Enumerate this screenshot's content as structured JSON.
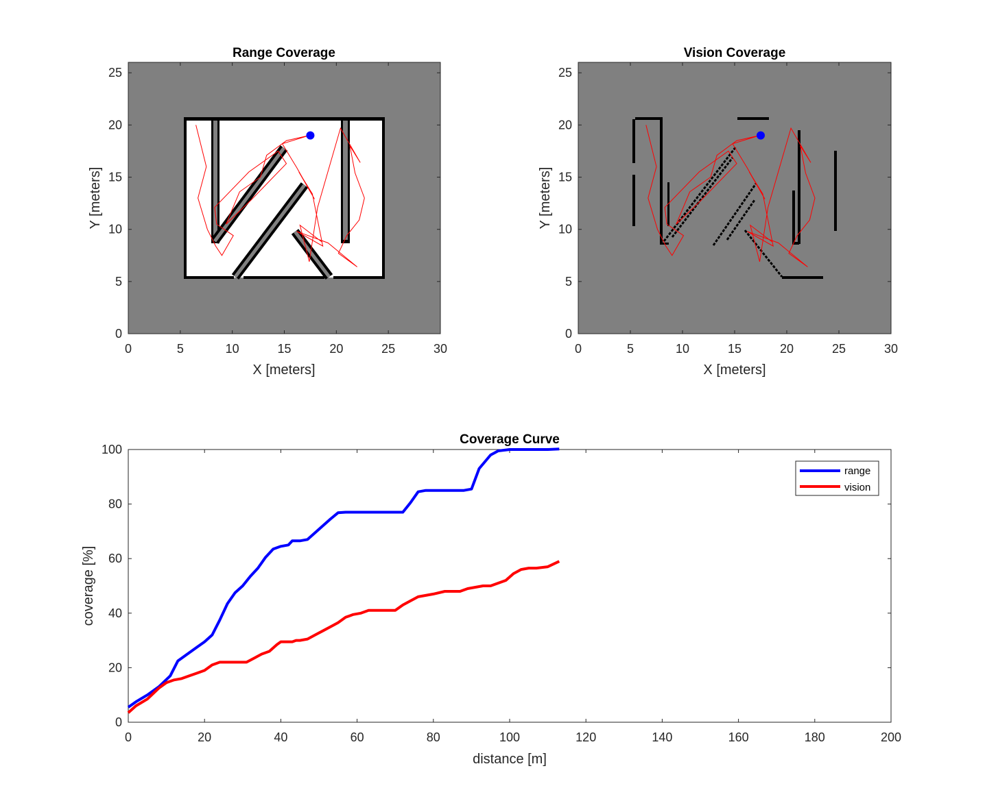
{
  "chart_data": [
    {
      "type": "occupancy-map",
      "title": "Range Coverage",
      "xlabel": "X [meters]",
      "ylabel": "Y [meters]",
      "xlim": [
        0,
        30
      ],
      "ylim": [
        0,
        26
      ],
      "xticks": [
        "0",
        "5",
        "10",
        "15",
        "20",
        "25",
        "30"
      ],
      "yticks": [
        "0",
        "5",
        "10",
        "15",
        "20",
        "25"
      ],
      "colors": {
        "unknown": "#808080",
        "free": "#ffffff",
        "occupied": "#000000",
        "path": "#ff0000",
        "robot": "#0000ff"
      },
      "robot_position": [
        17.5,
        19
      ],
      "path": [
        [
          6.5,
          20
        ],
        [
          7.5,
          16
        ],
        [
          6.7,
          13
        ],
        [
          7.6,
          10
        ],
        [
          8.4,
          8.4
        ],
        [
          9,
          7.5
        ],
        [
          10.1,
          9.4
        ],
        [
          8.5,
          10.5
        ],
        [
          8.3,
          12.1
        ],
        [
          11.6,
          15.5
        ],
        [
          14.4,
          17.5
        ],
        [
          15.2,
          16.3
        ],
        [
          11.8,
          12.8
        ],
        [
          9.4,
          10.5
        ],
        [
          10.7,
          13.6
        ],
        [
          12.7,
          15
        ],
        [
          13.3,
          17.1
        ],
        [
          15.2,
          18.5
        ],
        [
          17.4,
          19
        ],
        [
          14.8,
          18.2
        ],
        [
          16.2,
          15.9
        ],
        [
          17.9,
          12.9
        ],
        [
          16.4,
          15.5
        ],
        [
          17.7,
          13.4
        ],
        [
          18.7,
          8.4
        ],
        [
          16.2,
          9.8
        ],
        [
          19.2,
          8.7
        ],
        [
          22,
          6.4
        ],
        [
          20.2,
          7.7
        ],
        [
          21,
          9.4
        ],
        [
          22.2,
          10.9
        ],
        [
          22.7,
          13
        ],
        [
          21.8,
          15.4
        ],
        [
          21.3,
          18
        ],
        [
          22.3,
          16.4
        ],
        [
          20.4,
          19.7
        ],
        [
          18.2,
          12.1
        ],
        [
          17.4,
          6.9
        ],
        [
          16.5,
          10.4
        ],
        [
          18.6,
          8.8
        ]
      ]
    },
    {
      "type": "occupancy-map",
      "title": "Vision Coverage",
      "xlabel": "X [meters]",
      "ylabel": "Y [meters]",
      "xlim": [
        0,
        30
      ],
      "ylim": [
        0,
        26
      ],
      "xticks": [
        "0",
        "5",
        "10",
        "15",
        "20",
        "25",
        "30"
      ],
      "yticks": [
        "0",
        "5",
        "10",
        "15",
        "20",
        "25"
      ],
      "robot_position": [
        17.5,
        19
      ],
      "path": [
        [
          6.5,
          20
        ],
        [
          7.5,
          16
        ],
        [
          6.7,
          13
        ],
        [
          7.6,
          10
        ],
        [
          8.4,
          8.4
        ],
        [
          9,
          7.5
        ],
        [
          10.1,
          9.4
        ],
        [
          8.5,
          10.5
        ],
        [
          8.3,
          12.1
        ],
        [
          11.6,
          15.5
        ],
        [
          14.4,
          17.5
        ],
        [
          15.2,
          16.3
        ],
        [
          11.8,
          12.8
        ],
        [
          9.4,
          10.5
        ],
        [
          10.7,
          13.6
        ],
        [
          12.7,
          15
        ],
        [
          13.3,
          17.1
        ],
        [
          15.2,
          18.5
        ],
        [
          17.4,
          19
        ],
        [
          14.8,
          18.2
        ],
        [
          16.2,
          15.9
        ],
        [
          17.9,
          12.9
        ],
        [
          16.4,
          15.5
        ],
        [
          17.7,
          13.4
        ],
        [
          18.7,
          8.4
        ],
        [
          16.2,
          9.8
        ],
        [
          19.2,
          8.7
        ],
        [
          22,
          6.4
        ],
        [
          20.2,
          7.7
        ],
        [
          21,
          9.4
        ],
        [
          22.2,
          10.9
        ],
        [
          22.7,
          13
        ],
        [
          21.8,
          15.4
        ],
        [
          21.3,
          18
        ],
        [
          22.3,
          16.4
        ],
        [
          20.4,
          19.7
        ],
        [
          18.2,
          12.1
        ],
        [
          17.4,
          6.9
        ],
        [
          16.5,
          10.4
        ],
        [
          18.6,
          8.8
        ]
      ]
    },
    {
      "type": "line",
      "title": "Coverage Curve",
      "xlabel": "distance [m]",
      "ylabel": "coverage [%]",
      "xlim": [
        0,
        200
      ],
      "ylim": [
        0,
        100
      ],
      "xticks": [
        "0",
        "20",
        "40",
        "60",
        "80",
        "100",
        "120",
        "140",
        "160",
        "180",
        "200"
      ],
      "yticks": [
        "0",
        "20",
        "40",
        "60",
        "80",
        "100"
      ],
      "legend_position": "top-right",
      "series": [
        {
          "name": "range",
          "color": "#0000ff",
          "x": [
            0,
            2,
            5,
            8,
            11,
            13,
            15,
            18,
            20,
            22,
            24,
            26,
            28,
            30,
            32,
            34,
            36,
            38,
            40,
            42,
            43,
            44,
            45,
            47,
            49,
            51,
            53,
            55,
            57,
            60,
            65,
            70,
            72,
            74,
            76,
            78,
            82,
            88,
            90,
            92,
            95,
            97,
            100,
            105,
            110,
            113
          ],
          "values": [
            5.5,
            7.5,
            10,
            13,
            17,
            22.5,
            24.5,
            27.5,
            29.5,
            32,
            37.5,
            43.5,
            47.5,
            50,
            53.5,
            56.5,
            60.5,
            63.5,
            64.5,
            65,
            66.5,
            66.5,
            66.5,
            67,
            69.5,
            72,
            74.5,
            76.8,
            77,
            77,
            77,
            77,
            77,
            80.5,
            84.5,
            85,
            85,
            85,
            85.5,
            93,
            98,
            99.5,
            100,
            100,
            100,
            100.2
          ]
        },
        {
          "name": "vision",
          "color": "#ff0000",
          "x": [
            0,
            2,
            5,
            8,
            10,
            12,
            14,
            16,
            18,
            20,
            22,
            24,
            26,
            28,
            30,
            31,
            33,
            35,
            37,
            39,
            40,
            41,
            43,
            44,
            45,
            47,
            49,
            51,
            53,
            55,
            57,
            59,
            61,
            63,
            65,
            70,
            72,
            74,
            76,
            78,
            80,
            83,
            87,
            89,
            91,
            93,
            95,
            97,
            99,
            101,
            103,
            105,
            107,
            110,
            113
          ],
          "values": [
            3.5,
            6,
            8.5,
            12.5,
            14.5,
            15.5,
            16,
            17,
            18,
            19,
            21,
            22,
            22,
            22,
            22,
            22,
            23.5,
            25,
            26,
            28.5,
            29.5,
            29.5,
            29.5,
            30,
            30,
            30.5,
            32,
            33.5,
            35,
            36.5,
            38.5,
            39.5,
            40,
            41,
            41,
            41,
            43,
            44.5,
            46,
            46.5,
            47,
            48,
            48,
            49,
            49.5,
            50,
            50,
            51,
            52,
            54.5,
            56,
            56.5,
            56.5,
            57,
            59
          ]
        }
      ]
    }
  ]
}
